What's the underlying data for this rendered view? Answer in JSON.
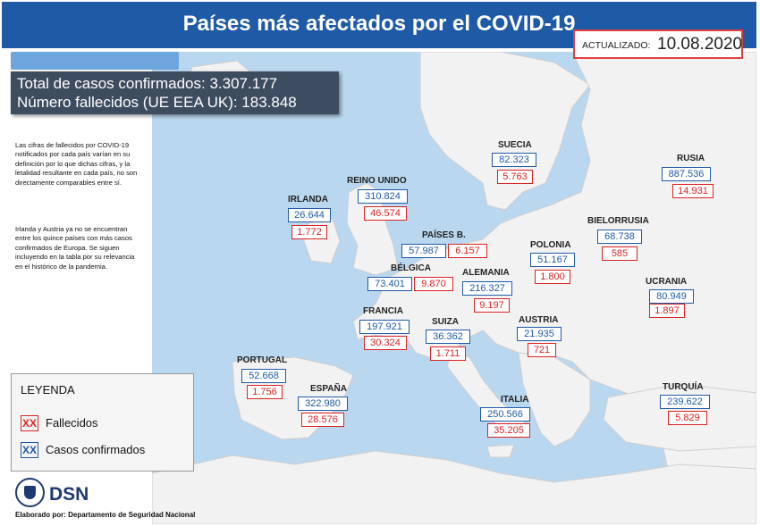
{
  "header": {
    "title": "Países más afectados por el COVID-19",
    "updated_label": "ACTUALIZADO:",
    "updated_date": "10.08.2020"
  },
  "totals": {
    "confirmed": "Total de casos confirmados: 3.307.177",
    "deaths": "Número fallecidos (UE EEA UK): 183.848"
  },
  "notes": {
    "p1": "Las cifras de fallecidos por COVID-19 notificados por cada país varían en su definición por lo que dichas cifras, y la letalidad resultante en cada país, no son directamente comparables entre sí.",
    "p2": "Irlanda y Austria ya no se encuentran entre los quince países con más casos confirmados de Europa. Se siguen incluyendo en la tabla por su relevancia en el histórico de la pandemia."
  },
  "legend": {
    "title": "LEYENDA",
    "deaths_label": "Fallecidos",
    "cases_label": "Casos confirmados",
    "swatch": "XX"
  },
  "footer": {
    "org": "DSN",
    "credit": "Elaborado por: Departamento de Seguridad Nacional"
  },
  "colors": {
    "header": "#1f5aa6",
    "cases": "#1f5aa6",
    "deaths": "#dd2222",
    "sea": "#b9d7ef",
    "land": "#f2f2f2"
  },
  "countries": [
    {
      "name": "IRLANDA",
      "cases": "26.644",
      "deaths": "1.772"
    },
    {
      "name": "REINO UNIDO",
      "cases": "310.824",
      "deaths": "46.574"
    },
    {
      "name": "SUECIA",
      "cases": "82.323",
      "deaths": "5.763"
    },
    {
      "name": "RUSIA",
      "cases": "887.536",
      "deaths": "14.931"
    },
    {
      "name": "BIELORRUSIA",
      "cases": "68.738",
      "deaths": "585"
    },
    {
      "name": "PAÍSES B.",
      "cases": "57.987",
      "deaths": "6.157"
    },
    {
      "name": "POLONIA",
      "cases": "51.167",
      "deaths": "1.800"
    },
    {
      "name": "BÉLGICA",
      "cases": "73.401",
      "deaths": "9.870"
    },
    {
      "name": "ALEMANIA",
      "cases": "216.327",
      "deaths": "9.197"
    },
    {
      "name": "UCRANIA",
      "cases": "80.949",
      "deaths": "1.897"
    },
    {
      "name": "FRANCIA",
      "cases": "197.921",
      "deaths": "30.324"
    },
    {
      "name": "SUIZA",
      "cases": "36.362",
      "deaths": "1.711"
    },
    {
      "name": "AUSTRIA",
      "cases": "21.935",
      "deaths": "721"
    },
    {
      "name": "PORTUGAL",
      "cases": "52.668",
      "deaths": "1.756"
    },
    {
      "name": "ESPAÑA",
      "cases": "322.980",
      "deaths": "28.576"
    },
    {
      "name": "ITALIA",
      "cases": "250.566",
      "deaths": "35.205"
    },
    {
      "name": "TURQUÍA",
      "cases": "239.622",
      "deaths": "5.829"
    }
  ]
}
